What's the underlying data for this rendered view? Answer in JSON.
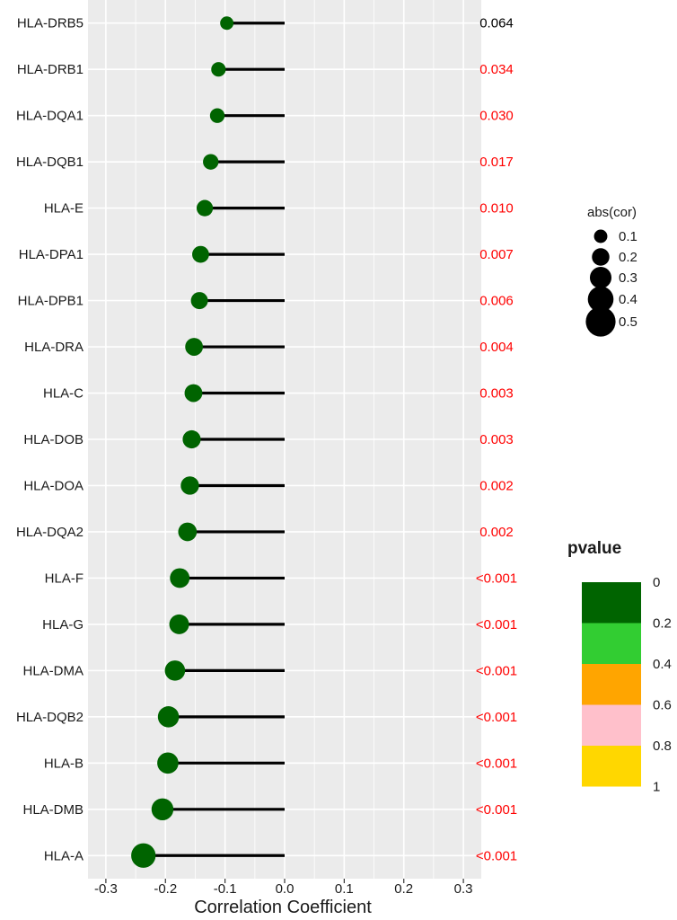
{
  "chart_data": {
    "type": "lollipop",
    "xlabel": "Correlation Coefficient",
    "xlim": [
      -0.33,
      0.33
    ],
    "xticks": [
      -0.3,
      -0.2,
      -0.1,
      0.0,
      0.1,
      0.2,
      0.3
    ],
    "xtick_labels": [
      "-0.3",
      "-0.2",
      "-0.1",
      "0.0",
      "0.1",
      "0.2",
      "0.3"
    ],
    "genes": [
      {
        "gene": "HLA-DRB5",
        "cor": -0.097,
        "pvalue_label": "0.064",
        "pvalue": 0.064
      },
      {
        "gene": "HLA-DRB1",
        "cor": -0.111,
        "pvalue_label": "0.034",
        "pvalue": 0.034
      },
      {
        "gene": "HLA-DQA1",
        "cor": -0.113,
        "pvalue_label": "0.030",
        "pvalue": 0.03
      },
      {
        "gene": "HLA-DQB1",
        "cor": -0.124,
        "pvalue_label": "0.017",
        "pvalue": 0.017
      },
      {
        "gene": "HLA-E",
        "cor": -0.134,
        "pvalue_label": "0.010",
        "pvalue": 0.01
      },
      {
        "gene": "HLA-DPA1",
        "cor": -0.141,
        "pvalue_label": "0.007",
        "pvalue": 0.007
      },
      {
        "gene": "HLA-DPB1",
        "cor": -0.143,
        "pvalue_label": "0.006",
        "pvalue": 0.006
      },
      {
        "gene": "HLA-DRA",
        "cor": -0.152,
        "pvalue_label": "0.004",
        "pvalue": 0.004
      },
      {
        "gene": "HLA-C",
        "cor": -0.153,
        "pvalue_label": "0.003",
        "pvalue": 0.003
      },
      {
        "gene": "HLA-DOB",
        "cor": -0.156,
        "pvalue_label": "0.003",
        "pvalue": 0.003
      },
      {
        "gene": "HLA-DOA",
        "cor": -0.159,
        "pvalue_label": "0.002",
        "pvalue": 0.002
      },
      {
        "gene": "HLA-DQA2",
        "cor": -0.163,
        "pvalue_label": "0.002",
        "pvalue": 0.002
      },
      {
        "gene": "HLA-F",
        "cor": -0.176,
        "pvalue_label": "<0.001",
        "pvalue": 0.0009
      },
      {
        "gene": "HLA-G",
        "cor": -0.177,
        "pvalue_label": "<0.001",
        "pvalue": 0.0009
      },
      {
        "gene": "HLA-DMA",
        "cor": -0.184,
        "pvalue_label": "<0.001",
        "pvalue": 0.0009
      },
      {
        "gene": "HLA-DQB2",
        "cor": -0.195,
        "pvalue_label": "<0.001",
        "pvalue": 0.0009
      },
      {
        "gene": "HLA-B",
        "cor": -0.196,
        "pvalue_label": "<0.001",
        "pvalue": 0.0009
      },
      {
        "gene": "HLA-DMB",
        "cor": -0.205,
        "pvalue_label": "<0.001",
        "pvalue": 0.0009
      },
      {
        "gene": "HLA-A",
        "cor": -0.237,
        "pvalue_label": "<0.001",
        "pvalue": 0.0009
      }
    ],
    "significance_threshold": 0.05,
    "colors": {
      "point": "#006400",
      "segment": "#000000",
      "significant_text": "#ff0000",
      "nonsignificant_text": "#000000",
      "panel_bg": "#ebebeb",
      "grid": "#ffffff"
    },
    "legend_size": {
      "title": "abs(cor)",
      "values": [
        0.1,
        0.2,
        0.3,
        0.4,
        0.5
      ],
      "labels": [
        "0.1",
        "0.2",
        "0.3",
        "0.4",
        "0.5"
      ],
      "placement": "right"
    },
    "legend_color": {
      "title": "pvalue",
      "labels": [
        "0",
        "0.2",
        "0.4",
        "0.6",
        "0.8",
        "1"
      ],
      "colors": [
        "#006400",
        "#32cd32",
        "#ffa500",
        "#ffc0cb",
        "#ffd700"
      ],
      "placement": "right"
    }
  }
}
